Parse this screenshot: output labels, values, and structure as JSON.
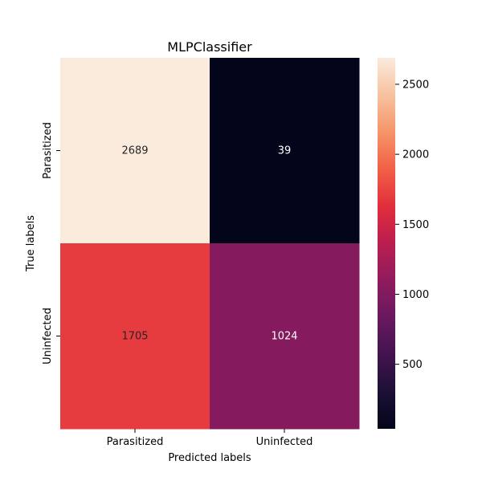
{
  "chart_data": {
    "type": "heatmap",
    "title": "MLPClassifier",
    "xlabel": "Predicted labels",
    "ylabel": "True labels",
    "x_categories": [
      "Parasitized",
      "Uninfected"
    ],
    "y_categories": [
      "Parasitized",
      "Uninfected"
    ],
    "values": [
      [
        2689,
        39
      ],
      [
        1705,
        1024
      ]
    ],
    "cell_labels": [
      [
        "2689",
        "39"
      ],
      [
        "1705",
        "1024"
      ]
    ],
    "colormap": "rocket",
    "colorbar": {
      "range": [
        39,
        2689
      ],
      "ticks": [
        500,
        1000,
        1500,
        2000,
        2500
      ],
      "tick_labels": [
        "500",
        "1000",
        "1500",
        "2000",
        "2500"
      ]
    },
    "grid": false
  }
}
